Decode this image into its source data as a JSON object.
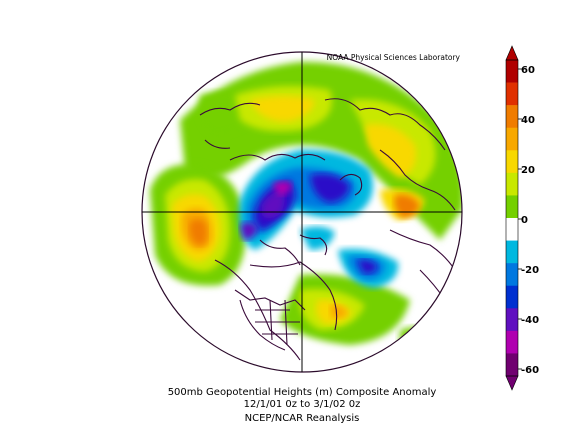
{
  "header": {
    "credit": "NOAA Physical Sciences Laboratory"
  },
  "caption": {
    "line1": "500mb Geopotential Heights (m)   Composite Anomaly",
    "line2": "12/1/01 0z  to 3/1/02 0z",
    "line3": "NCEP/NCAR Reanalysis"
  },
  "colorbar": {
    "tick_labels": [
      "60",
      "40",
      "20",
      "0",
      "-20",
      "-40",
      "-60"
    ],
    "colors": [
      "#b00000",
      "#e03000",
      "#f07c00",
      "#f8a800",
      "#f8d800",
      "#c8e800",
      "#74d000",
      "#ffffff",
      "#00b8e0",
      "#0078e0",
      "#0030d0",
      "#6010c0",
      "#b000b0",
      "#700070"
    ]
  },
  "map": {
    "projection": "polar-stereographic",
    "hemisphere": "northern",
    "land_outline_color": "#3a0a3a",
    "features": [
      {
        "name": "anomaly-positive-north-pacific",
        "color": "#f07c00"
      },
      {
        "name": "anomaly-negative-canada",
        "color": "#2a10c8"
      },
      {
        "name": "anomaly-negative-north-europe",
        "color": "#2a10c8"
      },
      {
        "name": "anomaly-negative-north-atlantic",
        "color": "#0030d0"
      },
      {
        "name": "anomaly-positive-europe",
        "color": "#f07c00"
      },
      {
        "name": "anomaly-positive-siberia",
        "color": "#f8d800"
      },
      {
        "name": "anomaly-positive-east-us",
        "color": "#f8a800"
      }
    ]
  }
}
